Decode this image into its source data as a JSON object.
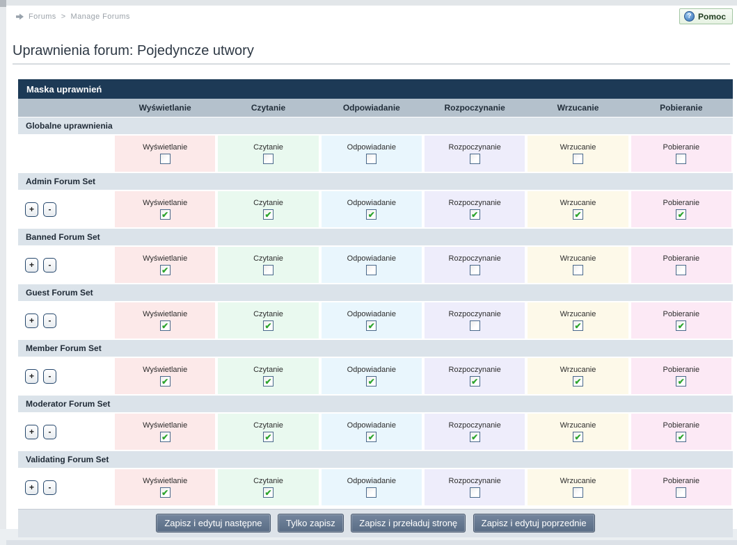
{
  "breadcrumb": {
    "items": [
      "Forums",
      "Manage Forums"
    ],
    "separator": ">"
  },
  "help_button": {
    "label": "Pomoc"
  },
  "icons": {
    "check": "✔",
    "help_glyph": "?",
    "breadcrumb_arrow": "right-arrow"
  },
  "page": {
    "title": "Uprawnienia forum: Pojedyncze utwory"
  },
  "table": {
    "title": "Maska uprawnień",
    "controls": {
      "expand": "+",
      "collapse": "-"
    },
    "columns": [
      {
        "label": "Wyświetlanie",
        "color": "#fce9e9"
      },
      {
        "label": "Czytanie",
        "color": "#e9f9ef"
      },
      {
        "label": "Odpowiadanie",
        "color": "#e9f6fd"
      },
      {
        "label": "Rozpoczynanie",
        "color": "#eeedfb"
      },
      {
        "label": "Wrzucanie",
        "color": "#fdf9e9"
      },
      {
        "label": "Pobieranie",
        "color": "#fce9f5"
      }
    ],
    "sections": [
      {
        "name": "Globalne uprawnienia",
        "has_controls": false,
        "checks": [
          false,
          false,
          false,
          false,
          false,
          false
        ]
      },
      {
        "name": "Admin Forum Set",
        "has_controls": true,
        "checks": [
          true,
          true,
          true,
          true,
          true,
          true
        ]
      },
      {
        "name": "Banned Forum Set",
        "has_controls": true,
        "checks": [
          true,
          false,
          false,
          false,
          false,
          false
        ]
      },
      {
        "name": "Guest Forum Set",
        "has_controls": true,
        "checks": [
          true,
          true,
          true,
          false,
          true,
          true
        ]
      },
      {
        "name": "Member Forum Set",
        "has_controls": true,
        "checks": [
          true,
          true,
          true,
          true,
          true,
          true
        ]
      },
      {
        "name": "Moderator Forum Set",
        "has_controls": true,
        "checks": [
          true,
          true,
          true,
          true,
          true,
          true
        ]
      },
      {
        "name": "Validating Forum Set",
        "has_controls": true,
        "checks": [
          true,
          true,
          false,
          false,
          false,
          false
        ]
      }
    ]
  },
  "footer": {
    "buttons": [
      "Zapisz i edytuj następne",
      "Tylko zapisz",
      "Zapisz i przeładuj stronę",
      "Zapisz i edytuj poprzednie"
    ]
  },
  "colors": {
    "header_bar": "#1d3a56",
    "column_header_row": "#b4c1cc",
    "section_row": "#dbe3ea",
    "footer_button": "#5f7189"
  }
}
